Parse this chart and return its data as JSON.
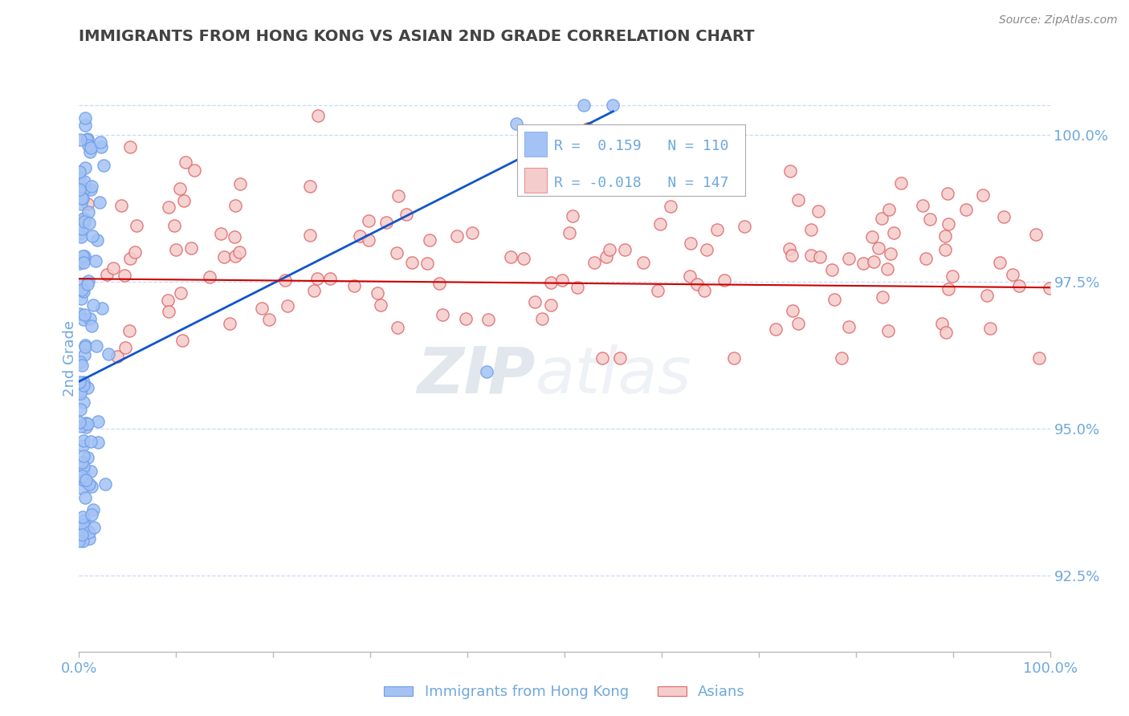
{
  "title": "IMMIGRANTS FROM HONG KONG VS ASIAN 2ND GRADE CORRELATION CHART",
  "source": "Source: ZipAtlas.com",
  "ylabel": "2nd Grade",
  "x_label_bottom_left": "0.0%",
  "x_label_bottom_right": "100.0%",
  "y_ticks_right": [
    92.5,
    95.0,
    97.5,
    100.0
  ],
  "y_ticks_right_labels": [
    "92.5%",
    "95.0%",
    "97.5%",
    "100.0%"
  ],
  "xlim": [
    0.0,
    100.0
  ],
  "ylim": [
    91.2,
    101.2
  ],
  "blue_color": "#a4c2f4",
  "pink_color": "#f4cccc",
  "blue_edge_color": "#6d9eeb",
  "pink_edge_color": "#e06666",
  "blue_line_color": "#1155cc",
  "pink_line_color": "#cc0000",
  "title_color": "#434343",
  "axis_label_color": "#6fa8dc",
  "background_color": "#ffffff",
  "grid_color": "#c9daf8",
  "legend_blue_color": "#a4c2f4",
  "legend_pink_color": "#f4cccc",
  "legend_text_color": "#6fa8dc",
  "legend_r1": "R =  0.159",
  "legend_n1": "N = 110",
  "legend_r2": "R = -0.018",
  "legend_n2": "N = 147",
  "watermark_zip": "ZIP",
  "watermark_atlas": "atlas",
  "seed": 7,
  "blue_n": 110,
  "pink_n": 147,
  "blue_R": 0.159,
  "pink_R": -0.018
}
